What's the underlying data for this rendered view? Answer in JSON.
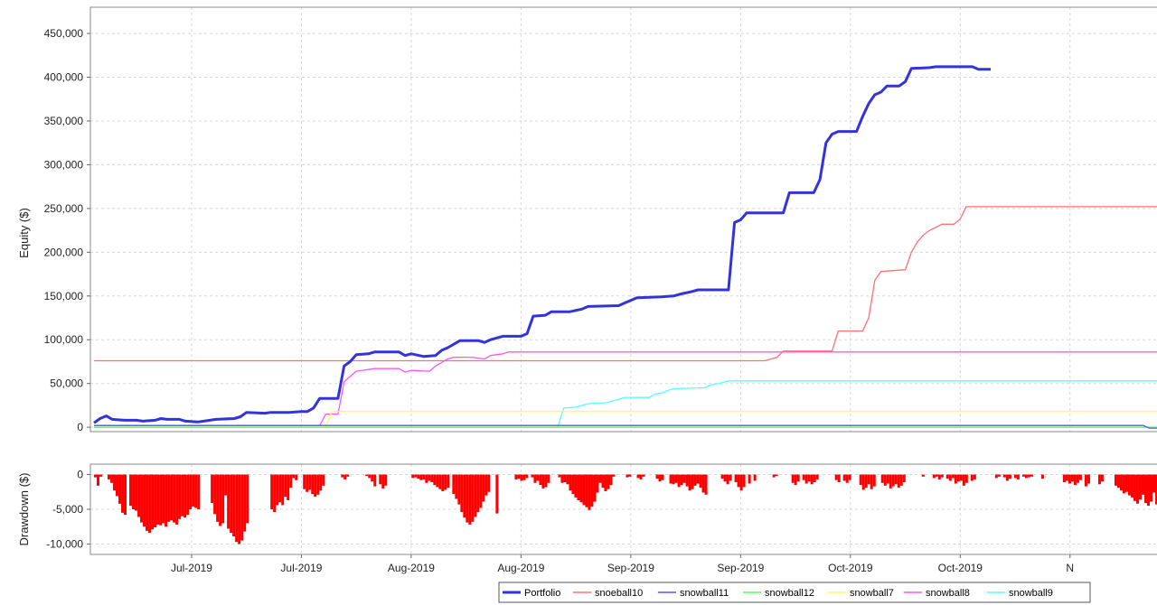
{
  "chart_data": [
    {
      "type": "line",
      "ylabel": "Equity ($)",
      "ylim": [
        -5000,
        480000
      ],
      "yticks": [
        0,
        50000,
        100000,
        150000,
        200000,
        250000,
        300000,
        350000,
        400000,
        450000
      ],
      "ytick_labels": [
        "0",
        "50,000",
        "100,000",
        "150,000",
        "200,000",
        "250,000",
        "300,000",
        "350,000",
        "400,000",
        "450,000"
      ],
      "xlim": [
        0,
        175
      ],
      "xticks": [
        16,
        34,
        52,
        70,
        88,
        106,
        124,
        142,
        160,
        178
      ],
      "xtick_labels": [
        "Jul-2019",
        "Jul-2019",
        "Aug-2019",
        "Aug-2019",
        "Sep-2019",
        "Sep-2019",
        "Oct-2019",
        "Oct-2019",
        "N"
      ],
      "grid": true,
      "series": [
        {
          "name": "snoeball10",
          "color": "#ff7070",
          "width": 1.3,
          "points": [
            [
              0,
              76000
            ],
            [
              110,
              76000
            ],
            [
              112,
              80000
            ],
            [
              113,
              87000
            ],
            [
              121,
              87000
            ],
            [
              122,
              110000
            ],
            [
              126,
              110000
            ],
            [
              127,
              125000
            ],
            [
              128,
              168000
            ],
            [
              129,
              178000
            ],
            [
              133,
              180000
            ],
            [
              134,
              200000
            ],
            [
              135,
              212000
            ],
            [
              136,
              220000
            ],
            [
              137,
              225000
            ],
            [
              139,
              232000
            ],
            [
              141,
              232000
            ],
            [
              142,
              238000
            ],
            [
              143,
              252000
            ],
            [
              175,
              252000
            ]
          ]
        },
        {
          "name": "snowball8",
          "color": "#ff55ff",
          "width": 1.3,
          "points": [
            [
              0,
              2000
            ],
            [
              37,
              2000
            ],
            [
              38,
              15000
            ],
            [
              40,
              15000
            ],
            [
              41,
              52000
            ],
            [
              42,
              58000
            ],
            [
              43,
              64000
            ],
            [
              45,
              66000
            ],
            [
              46,
              67000
            ],
            [
              50,
              67000
            ],
            [
              51,
              63000
            ],
            [
              52,
              65000
            ],
            [
              55,
              64000
            ],
            [
              56,
              70000
            ],
            [
              57,
              74000
            ],
            [
              58,
              78000
            ],
            [
              59,
              80000
            ],
            [
              62,
              80000
            ],
            [
              63,
              79000
            ],
            [
              64,
              78000
            ],
            [
              65,
              82000
            ],
            [
              67,
              84000
            ],
            [
              68,
              86000
            ],
            [
              175,
              86000
            ]
          ]
        },
        {
          "name": "snowball9",
          "color": "#55ffff",
          "width": 1.3,
          "points": [
            [
              0,
              0
            ],
            [
              76,
              0
            ],
            [
              77,
              22000
            ],
            [
              79,
              23000
            ],
            [
              81,
              27000
            ],
            [
              84,
              28000
            ],
            [
              86,
              32000
            ],
            [
              87,
              34000
            ],
            [
              91,
              34000
            ],
            [
              92,
              38000
            ],
            [
              93,
              39000
            ],
            [
              94,
              42000
            ],
            [
              95,
              44000
            ],
            [
              100,
              45000
            ],
            [
              101,
              48000
            ],
            [
              103,
              51000
            ],
            [
              104,
              53000
            ],
            [
              175,
              53000
            ]
          ]
        },
        {
          "name": "snowball7",
          "color": "#ffff55",
          "width": 1.3,
          "points": [
            [
              0,
              0
            ],
            [
              38,
              0
            ],
            [
              39,
              18000
            ],
            [
              175,
              18000
            ]
          ]
        },
        {
          "name": "snowball12",
          "color": "#55ff55",
          "width": 1.3,
          "points": [
            [
              0,
              0
            ],
            [
              175,
              0
            ]
          ]
        },
        {
          "name": "snowball11",
          "color": "#5555ff",
          "width": 1.3,
          "points": [
            [
              0,
              2000
            ],
            [
              172,
              2000
            ],
            [
              173,
              -1000
            ],
            [
              175,
              -1000
            ]
          ]
        },
        {
          "name": "Portfolio",
          "color": "#3333dd",
          "width": 3,
          "points": [
            [
              0,
              5000
            ],
            [
              1,
              10000
            ],
            [
              2,
              13000
            ],
            [
              3,
              9000
            ],
            [
              5,
              8000
            ],
            [
              7,
              8000
            ],
            [
              8,
              7000
            ],
            [
              10,
              8000
            ],
            [
              11,
              10000
            ],
            [
              12,
              9000
            ],
            [
              14,
              9000
            ],
            [
              15,
              7000
            ],
            [
              17,
              6000
            ],
            [
              18,
              7000
            ],
            [
              20,
              9000
            ],
            [
              23,
              10000
            ],
            [
              24,
              12000
            ],
            [
              25,
              17000
            ],
            [
              28,
              16000
            ],
            [
              29,
              17000
            ],
            [
              32,
              17000
            ],
            [
              34,
              18000
            ],
            [
              35,
              18000
            ],
            [
              36,
              22000
            ],
            [
              37,
              33000
            ],
            [
              40,
              33000
            ],
            [
              41,
              70000
            ],
            [
              42,
              75000
            ],
            [
              43,
              83000
            ],
            [
              45,
              84000
            ],
            [
              46,
              86000
            ],
            [
              50,
              86000
            ],
            [
              51,
              82000
            ],
            [
              52,
              84000
            ],
            [
              54,
              81000
            ],
            [
              56,
              82000
            ],
            [
              57,
              88000
            ],
            [
              58,
              91000
            ],
            [
              59,
              95000
            ],
            [
              60,
              99000
            ],
            [
              63,
              99000
            ],
            [
              64,
              97000
            ],
            [
              65,
              100000
            ],
            [
              67,
              104000
            ],
            [
              70,
              104000
            ],
            [
              71,
              107000
            ],
            [
              72,
              127000
            ],
            [
              74,
              128000
            ],
            [
              75,
              132000
            ],
            [
              78,
              132000
            ],
            [
              80,
              135000
            ],
            [
              81,
              138000
            ],
            [
              86,
              139000
            ],
            [
              87,
              142000
            ],
            [
              88,
              145000
            ],
            [
              89,
              148000
            ],
            [
              93,
              149000
            ],
            [
              95,
              150000
            ],
            [
              96,
              152000
            ],
            [
              98,
              155000
            ],
            [
              99,
              157000
            ],
            [
              104,
              157000
            ],
            [
              105,
              234000
            ],
            [
              106,
              237000
            ],
            [
              107,
              245000
            ],
            [
              113,
              245000
            ],
            [
              114,
              268000
            ],
            [
              118,
              268000
            ],
            [
              119,
              283000
            ],
            [
              120,
              325000
            ],
            [
              121,
              335000
            ],
            [
              122,
              338000
            ],
            [
              125,
              338000
            ],
            [
              126,
              355000
            ],
            [
              127,
              370000
            ],
            [
              128,
              380000
            ],
            [
              129,
              383000
            ],
            [
              130,
              390000
            ],
            [
              132,
              390000
            ],
            [
              133,
              395000
            ],
            [
              134,
              410000
            ],
            [
              137,
              411000
            ],
            [
              138,
              412000
            ],
            [
              141,
              412000
            ],
            [
              144,
              412000
            ],
            [
              145,
              409000
            ],
            [
              147,
              409000
            ]
          ]
        }
      ]
    },
    {
      "type": "bar",
      "ylabel": "Drawdown ($)",
      "ylim": [
        -11500,
        1500
      ],
      "yticks": [
        0,
        -5000,
        -10000
      ],
      "ytick_labels": [
        "0",
        "-5,000",
        "-10,000"
      ],
      "color": "#ff0000",
      "values": [
        0,
        -400,
        -1600,
        -300,
        0,
        0,
        -700,
        -1200,
        -2300,
        -3100,
        -4200,
        -5500,
        -5800,
        0,
        -4500,
        -5000,
        -5200,
        -6100,
        -6900,
        -7500,
        -8100,
        -8400,
        -7900,
        -7600,
        -7200,
        -7300,
        -7000,
        -7500,
        -6800,
        -6600,
        -6900,
        -7200,
        -6400,
        -6000,
        -6200,
        -5800,
        -5000,
        -4600,
        -4800,
        -5000,
        0,
        0,
        0,
        0,
        -4100,
        -5700,
        -6800,
        -7400,
        -7000,
        -3000,
        -7800,
        -8400,
        -8900,
        -9700,
        -10000,
        -9500,
        -8200,
        -7000,
        0,
        0,
        0,
        0,
        0,
        0,
        0,
        0,
        -5000,
        -5400,
        -4400,
        -4000,
        -4400,
        -3200,
        -3700,
        -1900,
        -500,
        -800,
        0,
        0,
        -2100,
        -2500,
        -2200,
        -2800,
        -3200,
        -2900,
        -2300,
        -1600,
        0,
        0,
        0,
        0,
        0,
        0,
        -400,
        -700,
        -300,
        0,
        0,
        0,
        0,
        0,
        0,
        -200,
        -500,
        -1000,
        -1700,
        0,
        -1400,
        -2000,
        -1600,
        0,
        0,
        0,
        0,
        0,
        0,
        0,
        0,
        0,
        -500,
        -400,
        -600,
        -800,
        -700,
        -1200,
        -900,
        -1100,
        -1500,
        -1800,
        -2100,
        -2400,
        -2200,
        -1900,
        0,
        -2800,
        -3500,
        -4300,
        -5400,
        -6200,
        -6900,
        -7200,
        -6800,
        -6100,
        -5400,
        -4800,
        -3900,
        -3000,
        -2500,
        0,
        0,
        -5600,
        0,
        0,
        0,
        0,
        0,
        0,
        -700,
        -600,
        -900,
        -800,
        -500,
        0,
        -400,
        -1200,
        -900,
        -1500,
        -2000,
        -1800,
        -1200,
        0,
        0,
        0,
        -400,
        -1200,
        -1100,
        -1400,
        -2300,
        -2800,
        -3300,
        -3700,
        -4000,
        -4400,
        -4700,
        -5100,
        -4600,
        -3900,
        -2600,
        -1200,
        -1900,
        -2400,
        -2100,
        -1500,
        -300,
        0,
        0,
        0,
        0,
        -400,
        -300,
        0,
        0,
        -500,
        -700,
        -300,
        0,
        0,
        0,
        0,
        -600,
        -1000,
        -800,
        0,
        0,
        -1300,
        -1400,
        -1200,
        -1800,
        -1500,
        -1200,
        -1700,
        -2300,
        -2100,
        -1600,
        -1300,
        -1900,
        -2600,
        -2900,
        0,
        0,
        0,
        0,
        0,
        -600,
        -1000,
        -1400,
        -900,
        0,
        -1100,
        -1800,
        -2300,
        -1800,
        0,
        -1300,
        0,
        -900,
        0,
        0,
        0,
        0,
        0,
        0,
        -400,
        -200,
        0,
        0,
        0,
        0,
        0,
        -1200,
        -1500,
        -1000,
        0,
        -800,
        -1300,
        -1000,
        -1400,
        -1100,
        -700,
        0,
        0,
        0,
        0,
        0,
        0,
        -800,
        -1100,
        0,
        -900,
        -1200,
        -800,
        0,
        0,
        0,
        -1500,
        -2200,
        -1900,
        -1400,
        -2100,
        -1700,
        0,
        0,
        -1200,
        -1600,
        -1300,
        -2000,
        -1700,
        -1400,
        -1900,
        -1600,
        -1100,
        0,
        0,
        0,
        0,
        0,
        0,
        -300,
        0,
        0,
        0,
        -500,
        -300,
        -700,
        -400,
        0,
        -600,
        -900,
        -500,
        -1300,
        -1000,
        -900,
        -1600,
        -1200,
        0,
        -900,
        -700,
        0,
        0,
        0,
        0,
        0,
        0,
        0,
        -500,
        -300,
        0,
        -400,
        -900,
        -600,
        0,
        -500,
        -700,
        0,
        -300,
        -500,
        -400,
        -300,
        0,
        0,
        0,
        -600,
        0,
        0,
        0,
        0,
        0,
        0,
        0,
        -1100,
        -900,
        -1300,
        -1000,
        -1500,
        -1200,
        -800,
        0,
        -1700,
        -1300,
        0,
        0,
        0,
        -1400,
        -1000,
        0,
        0,
        0,
        0,
        -1600,
        -1900,
        -2300,
        -2700,
        -2500,
        -3000,
        -3300,
        -3800,
        -4200,
        -3600,
        -2900,
        -4100,
        -4500,
        -3900,
        -2600,
        -4300,
        -4600
      ]
    }
  ],
  "legend": {
    "items": [
      {
        "label": "Portfolio",
        "color": "#3333dd",
        "bold": true
      },
      {
        "label": "snoeball10",
        "color": "#ff7070"
      },
      {
        "label": "snowball11",
        "color": "#5555ff"
      },
      {
        "label": "snowball12",
        "color": "#55ff55"
      },
      {
        "label": "snowball7",
        "color": "#ffff55"
      },
      {
        "label": "snowball8",
        "color": "#ff55ff"
      },
      {
        "label": "snowball9",
        "color": "#55ffff"
      }
    ]
  }
}
